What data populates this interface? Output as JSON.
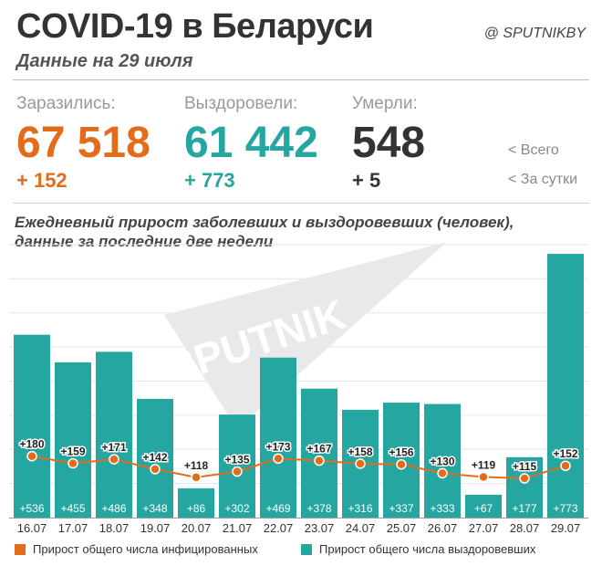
{
  "header": {
    "title": "COVID-19 в Беларуси",
    "subtitle": "Данные на 29 июля",
    "brand": "@ SPUTNIKBY"
  },
  "stats": [
    {
      "label": "Заразились:",
      "total": "67 518",
      "delta": "+ 152",
      "color": "#e36c1b"
    },
    {
      "label": "Выздоровели:",
      "total": "61 442",
      "delta": "+ 773",
      "color": "#26a6a1"
    },
    {
      "label": "Умерли:",
      "total": "548",
      "delta": "+ 5",
      "color": "#333333"
    }
  ],
  "hints": {
    "total": "<  Всего",
    "daily": "<  За сутки"
  },
  "watermark": "SPUTNIK",
  "colors": {
    "infected": "#e36c1b",
    "recovered": "#26a6a1",
    "watermark": "#d9d9d9"
  },
  "chart_data": {
    "type": "bar",
    "title": "Ежедневный прирост заболевших и выздоровевших (человек), данные за последние две недели",
    "categories": [
      "16.07",
      "17.07",
      "18.07",
      "19.07",
      "20.07",
      "21.07",
      "22.07",
      "23.07",
      "24.07",
      "25.07",
      "26.07",
      "27.07",
      "28.07",
      "29.07"
    ],
    "series": [
      {
        "name": "Прирост общего числа выздоровевших",
        "type": "bar",
        "color": "#26a6a1",
        "values": [
          536,
          455,
          486,
          348,
          86,
          302,
          469,
          378,
          316,
          337,
          333,
          67,
          177,
          773
        ],
        "labels": [
          "+536",
          "+455",
          "+486",
          "+348",
          "+86",
          "+302",
          "+469",
          "+378",
          "+316",
          "+337",
          "+333",
          "+67",
          "+177",
          "+773"
        ]
      },
      {
        "name": "Прирост общего числа инфицированных",
        "type": "line",
        "color": "#e36c1b",
        "values": [
          180,
          159,
          171,
          142,
          118,
          135,
          173,
          167,
          158,
          156,
          130,
          119,
          115,
          152
        ],
        "labels": [
          "+180",
          "+159",
          "+171",
          "+142",
          "+118",
          "+135",
          "+173",
          "+167",
          "+158",
          "+156",
          "+130",
          "+119",
          "+115",
          "+152"
        ]
      }
    ],
    "ylim": [
      0,
      800
    ],
    "grid": true,
    "legend": "bottom"
  }
}
